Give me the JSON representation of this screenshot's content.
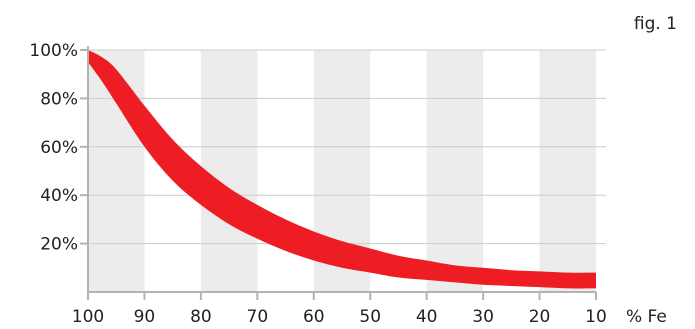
{
  "chart_data": {
    "type": "area",
    "annotation": "fig. 1",
    "xlabel": "% Fe",
    "ylabel": "",
    "x_ticks": [
      100,
      90,
      80,
      70,
      60,
      50,
      40,
      30,
      20,
      10
    ],
    "y_ticks": [
      20,
      40,
      60,
      80,
      100
    ],
    "y_tick_labels": [
      "20%",
      "40%",
      "60%",
      "80%",
      "100%"
    ],
    "xlim": [
      100,
      10
    ],
    "ylim": [
      0,
      100
    ],
    "grid": "alternating vertical bands",
    "band_color": "#ececec",
    "line_color": "#cccccc",
    "axis_color": "#b3b3b3",
    "series": [
      {
        "x": [
          100,
          97.5,
          95,
          90,
          85,
          80,
          75,
          70,
          65,
          60,
          55,
          50,
          45,
          40,
          35,
          30,
          25,
          20,
          15,
          10
        ],
        "upper": [
          100,
          97,
          92,
          77,
          63,
          52,
          43,
          36,
          30,
          25,
          21,
          18,
          15,
          13,
          11,
          10,
          9,
          8.5,
          8,
          8
        ],
        "lower": [
          95,
          87,
          78,
          60,
          46,
          36,
          28,
          22,
          17,
          13,
          10,
          8,
          6,
          5,
          4,
          3,
          2.5,
          2,
          1.5,
          1.5
        ],
        "color": "#ee1d24"
      }
    ]
  }
}
